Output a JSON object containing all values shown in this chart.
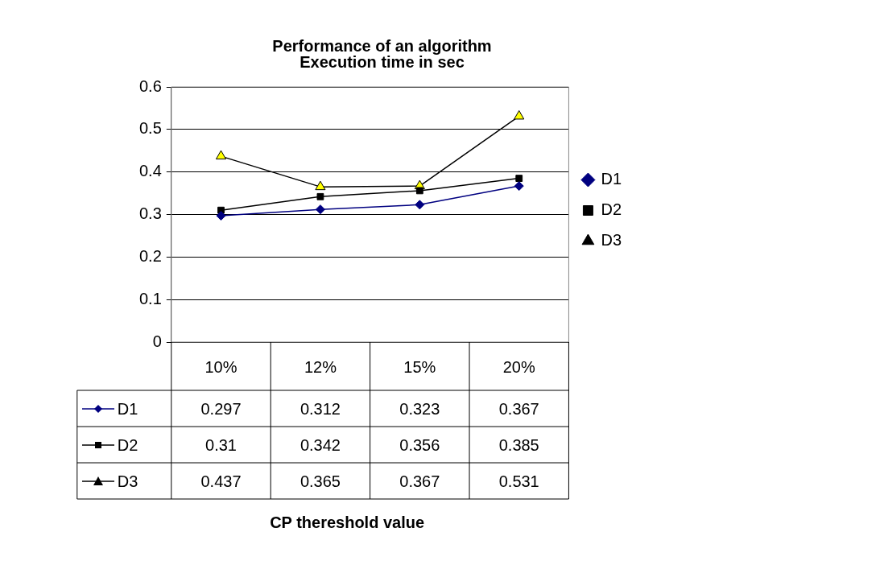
{
  "chart_data": {
    "type": "line",
    "title": "Performance of an algorithm",
    "subtitle": "Execution time in sec",
    "annotations": [
      "CP thereshold value"
    ],
    "categories": [
      "10%",
      "12%",
      "15%",
      "20%"
    ],
    "series": [
      {
        "name": "D1",
        "color": "#000080",
        "marker": "diamond",
        "values": [
          0.297,
          0.312,
          0.323,
          0.367
        ]
      },
      {
        "name": "D2",
        "color": "#000000",
        "marker": "square",
        "values": [
          0.31,
          0.342,
          0.356,
          0.385
        ]
      },
      {
        "name": "D3",
        "color": "#000000",
        "colors": [
          "#ffff00",
          "#ffff00",
          "#ffff00",
          "#ffff00"
        ],
        "marker": "triangle",
        "values": [
          0.437,
          0.365,
          0.367,
          0.531
        ]
      }
    ],
    "ylim": [
      0,
      0.6
    ],
    "yticks": [
      0,
      0.1,
      0.2,
      0.3,
      0.4,
      0.5,
      0.6
    ],
    "grid": "y",
    "legend": "right",
    "data_labels": true
  }
}
